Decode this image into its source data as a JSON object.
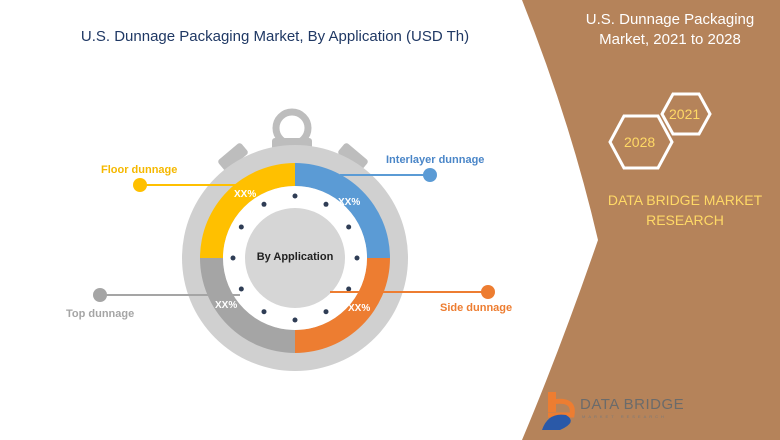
{
  "header": {
    "title": "U.S. Dunnage Packaging Market, By Application (USD Th)"
  },
  "side_panel": {
    "title": "U.S. Dunnage Packaging Market, 2021 to 2028",
    "year_start": "2021",
    "year_end": "2028",
    "brand": "DATA BRIDGE MARKET RESEARCH",
    "logo_text": "DATA BRIDGE",
    "logo_subtext": "MARKET RESEARCH",
    "color": "#b5835a"
  },
  "chart_data": {
    "type": "pie",
    "title": "U.S. Dunnage Packaging Market, By Application (USD Th)",
    "center_label": "By Application",
    "categories": [
      "Interlayer dunnage",
      "Side dunnage",
      "Top dunnage",
      "Floor dunnage"
    ],
    "values": [
      25,
      25,
      25,
      25
    ],
    "data_labels": [
      "XX%",
      "XX%",
      "XX%",
      "XX%"
    ],
    "colors": [
      "#5b9bd5",
      "#ed7d31",
      "#a5a5a5",
      "#ffc000"
    ],
    "label_colors": [
      "#4a86c8",
      "#ed7d31",
      "#a5a5a5",
      "#f5b800"
    ]
  }
}
